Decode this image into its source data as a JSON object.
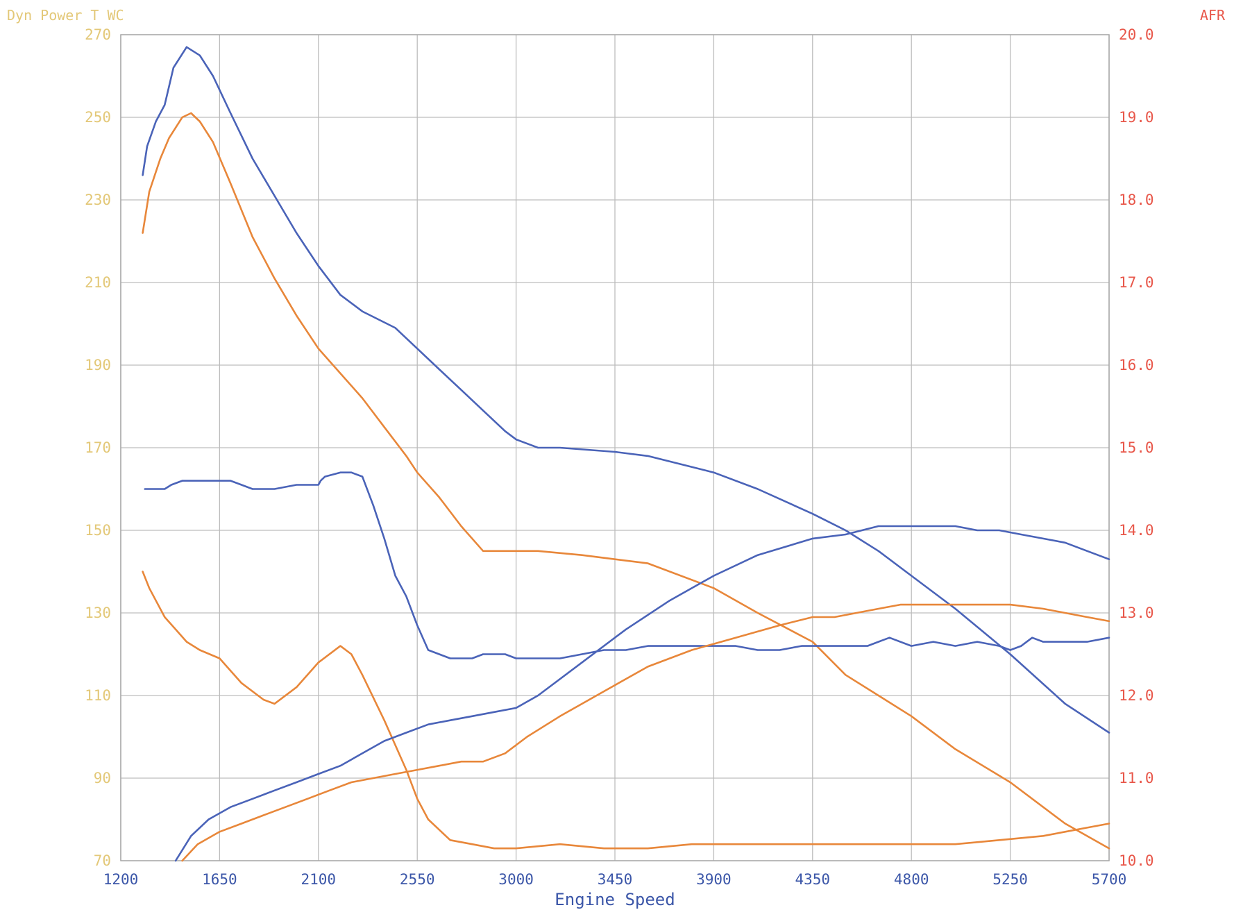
{
  "chart_data": {
    "type": "line",
    "title_left": "Dyn Power T WC",
    "title_right": "AFR",
    "xlabel": "Engine Speed",
    "xlim": [
      1200,
      5700
    ],
    "xticks": [
      1200,
      1650,
      2100,
      2550,
      3000,
      3450,
      3900,
      4350,
      4800,
      5250,
      5700
    ],
    "ylim_left": [
      70,
      270
    ],
    "yticks_left": [
      70,
      90,
      110,
      130,
      150,
      170,
      190,
      210,
      230,
      250,
      270
    ],
    "ylim_right": [
      10.0,
      20.0
    ],
    "yticks_right": [
      "10.0",
      "11.0",
      "12.0",
      "13.0",
      "14.0",
      "15.0",
      "16.0",
      "17.0",
      "18.0",
      "19.0",
      "20.0"
    ],
    "grid": true,
    "colors": {
      "blue": "#4a63b8",
      "orange": "#e8873a",
      "left_axis": "#e3c878",
      "right_axis": "#e8574a",
      "x_axis": "#3b56a8",
      "grid": "#bdbdbd"
    },
    "series": [
      {
        "color": "blue",
        "axis": "left",
        "x": [
          1300,
          1320,
          1360,
          1400,
          1440,
          1500,
          1560,
          1620,
          1700,
          1800,
          1900,
          2000,
          2100,
          2200,
          2300,
          2450,
          2550,
          2650,
          2750,
          2850,
          2950,
          3000,
          3100,
          3200,
          3450,
          3600,
          3750,
          3900,
          4100,
          4350,
          4500,
          4650,
          4800,
          5000,
          5250,
          5500,
          5700
        ],
        "y": [
          236,
          243,
          249,
          253,
          262,
          267,
          265,
          260,
          251,
          240,
          231,
          222,
          214,
          207,
          203,
          199,
          194,
          189,
          184,
          179,
          174,
          172,
          170,
          170,
          169,
          168,
          166,
          164,
          160,
          154,
          150,
          145,
          139,
          131,
          120,
          108,
          101
        ]
      },
      {
        "color": "orange",
        "axis": "left",
        "x": [
          1300,
          1330,
          1380,
          1420,
          1480,
          1520,
          1560,
          1620,
          1700,
          1800,
          1900,
          2000,
          2100,
          2200,
          2300,
          2400,
          2500,
          2550,
          2650,
          2750,
          2850,
          3000,
          3100,
          3300,
          3450,
          3600,
          3900,
          4100,
          4350,
          4500,
          4650,
          4800,
          5000,
          5250,
          5500,
          5700
        ],
        "y": [
          222,
          232,
          240,
          245,
          250,
          251,
          249,
          244,
          234,
          221,
          211,
          202,
          194,
          188,
          182,
          175,
          168,
          164,
          158,
          151,
          145,
          145,
          145,
          144,
          143,
          142,
          136,
          130,
          123,
          115,
          110,
          105,
          97,
          89,
          79,
          73
        ]
      },
      {
        "color": "blue",
        "axis": "left",
        "x": [
          1310,
          1360,
          1400,
          1430,
          1480,
          1560,
          1650,
          1700,
          1750,
          1800,
          1900,
          2000,
          2100,
          2110,
          2130,
          2200,
          2250,
          2300,
          2350,
          2400,
          2450,
          2500,
          2550,
          2600,
          2700,
          2800,
          2850,
          2950,
          3000,
          3100,
          3200,
          3300,
          3400,
          3500,
          3600,
          3800,
          4000,
          4100,
          4200,
          4300,
          4400,
          4500,
          4600,
          4650,
          4700,
          4800,
          4900,
          5000,
          5100,
          5200,
          5250,
          5300,
          5350,
          5400,
          5450,
          5500,
          5600,
          5700
        ],
        "y": [
          160,
          160,
          160,
          161,
          162,
          162,
          162,
          162,
          161,
          160,
          160,
          161,
          161,
          162,
          163,
          164,
          164,
          163,
          156,
          148,
          139,
          134,
          127,
          121,
          119,
          119,
          120,
          120,
          119,
          119,
          119,
          120,
          121,
          121,
          122,
          122,
          122,
          121,
          121,
          122,
          122,
          122,
          122,
          123,
          124,
          122,
          123,
          122,
          123,
          122,
          121,
          122,
          124,
          123,
          123,
          123,
          123,
          124
        ]
      },
      {
        "color": "orange",
        "axis": "left",
        "x": [
          1300,
          1330,
          1400,
          1450,
          1500,
          1560,
          1650,
          1750,
          1850,
          1900,
          2000,
          2100,
          2200,
          2250,
          2300,
          2400,
          2500,
          2550,
          2600,
          2700,
          2800,
          2900,
          3000,
          3200,
          3400,
          3600,
          3800,
          4000,
          4200,
          4400,
          4600,
          4800,
          5000,
          5200,
          5400,
          5500,
          5600,
          5700
        ],
        "y": [
          140,
          136,
          129,
          126,
          123,
          121,
          119,
          113,
          109,
          108,
          112,
          118,
          122,
          120,
          115,
          104,
          92,
          85,
          80,
          75,
          74,
          73,
          73,
          74,
          73,
          73,
          74,
          74,
          74,
          74,
          74,
          74,
          74,
          75,
          76,
          77,
          78,
          79
        ]
      },
      {
        "color": "blue",
        "axis": "left",
        "x": [
          1450,
          1520,
          1600,
          1700,
          1800,
          1900,
          2000,
          2100,
          2200,
          2300,
          2400,
          2500,
          2600,
          2700,
          2800,
          2900,
          3000,
          3100,
          3300,
          3500,
          3700,
          3900,
          4100,
          4350,
          4500,
          4650,
          4800,
          4900,
          5000,
          5100,
          5200,
          5300,
          5400,
          5500,
          5600,
          5700
        ],
        "y": [
          70,
          76,
          80,
          83,
          85,
          87,
          89,
          91,
          93,
          96,
          99,
          101,
          103,
          104,
          105,
          106,
          107,
          110,
          118,
          126,
          133,
          139,
          144,
          148,
          149,
          151,
          151,
          151,
          151,
          150,
          150,
          149,
          148,
          147,
          145,
          143
        ]
      },
      {
        "color": "orange",
        "axis": "left",
        "x": [
          1480,
          1550,
          1650,
          1750,
          1850,
          1950,
          2050,
          2150,
          2250,
          2350,
          2450,
          2550,
          2650,
          2750,
          2850,
          2950,
          3050,
          3200,
          3400,
          3600,
          3800,
          4000,
          4200,
          4350,
          4450,
          4550,
          4650,
          4750,
          4850,
          5000,
          5100,
          5250,
          5400,
          5500,
          5600,
          5700
        ],
        "y": [
          70,
          74,
          77,
          79,
          81,
          83,
          85,
          87,
          89,
          90,
          91,
          92,
          93,
          94,
          94,
          96,
          100,
          105,
          111,
          117,
          121,
          124,
          127,
          129,
          129,
          130,
          131,
          132,
          132,
          132,
          132,
          132,
          131,
          130,
          129,
          128
        ]
      }
    ]
  }
}
